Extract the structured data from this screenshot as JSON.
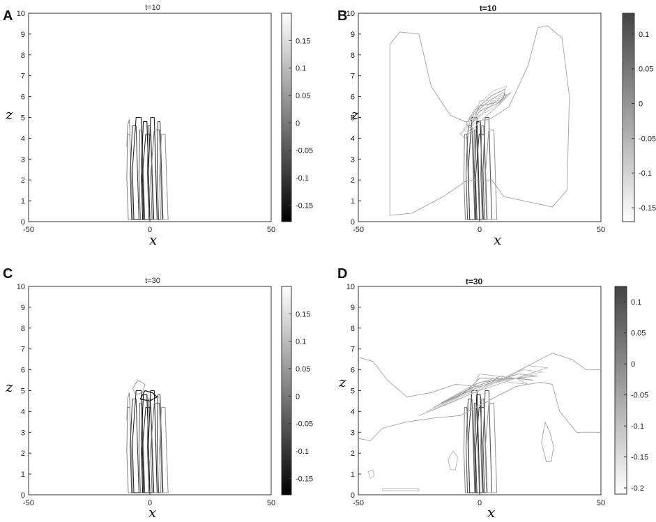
{
  "panels": [
    {
      "letter": "A",
      "title": "t=10",
      "xlabel": "x",
      "ylabel": "z",
      "xticks": [
        "-50",
        "0",
        "50"
      ],
      "yticks": [
        "0",
        "1",
        "2",
        "3",
        "4",
        "5",
        "6",
        "7",
        "8",
        "9",
        "10"
      ],
      "cbar_ticks": [
        "0.15",
        "0.1",
        "0.05",
        "0",
        "-0.05",
        "-0.1",
        "-0.15"
      ]
    },
    {
      "letter": "B",
      "title": "t=10",
      "xlabel": "x",
      "ylabel": "z",
      "xticks": [
        "-50",
        "0",
        "50"
      ],
      "yticks": [
        "0",
        "1",
        "2",
        "3",
        "4",
        "5",
        "6",
        "7",
        "8",
        "9",
        "10"
      ],
      "cbar_ticks": [
        "0.1",
        "0.05",
        "0",
        "-0.05",
        "-0.1",
        "-0.15"
      ]
    },
    {
      "letter": "C",
      "title": "t=30",
      "xlabel": "x",
      "ylabel": "z",
      "xticks": [
        "-50",
        "0",
        "50"
      ],
      "yticks": [
        "0",
        "1",
        "2",
        "3",
        "4",
        "5",
        "6",
        "7",
        "8",
        "9",
        "10"
      ],
      "cbar_ticks": [
        "0.15",
        "0.1",
        "0.05",
        "0",
        "-0.05",
        "-0.1",
        "-0.15"
      ]
    },
    {
      "letter": "D",
      "title": "t=30",
      "xlabel": "x",
      "ylabel": "z",
      "xticks": [
        "-50",
        "0",
        "50"
      ],
      "yticks": [
        "0",
        "1",
        "2",
        "3",
        "4",
        "5",
        "6",
        "7",
        "8",
        "9",
        "10"
      ],
      "cbar_ticks": [
        "0.1",
        "0.05",
        "0",
        "-0.05",
        "-0.1",
        "-0.15",
        "-0.2"
      ]
    }
  ],
  "chart_data": [
    {
      "type": "contour",
      "title": "t=10",
      "xlabel": "x",
      "ylabel": "z",
      "xlim": [
        -50,
        50
      ],
      "ylim": [
        0,
        10
      ],
      "colorbar": {
        "ticks": [
          0.15,
          0.1,
          0.05,
          0,
          -0.05,
          -0.1,
          -0.15
        ],
        "range": [
          -0.18,
          0.2
        ],
        "colormap": "gray (black = low, white = high)"
      },
      "features": [
        {
          "kind": "vertical-contour-band",
          "x_center": 0,
          "x_extent": [
            -10,
            8
          ],
          "z_extent": [
            0,
            5.2
          ],
          "tilt": "slight lean, top shifted left"
        }
      ]
    },
    {
      "type": "contour",
      "title": "t=10",
      "xlabel": "x",
      "ylabel": "z",
      "xlim": [
        -50,
        50
      ],
      "ylim": [
        0,
        10
      ],
      "colorbar": {
        "ticks": [
          0.1,
          0.05,
          0,
          -0.05,
          -0.1,
          -0.15
        ],
        "range": [
          -0.17,
          0.13
        ],
        "colormap": "gray (white = low, dark = high)"
      },
      "features": [
        {
          "kind": "vertical-contour-band",
          "x_center": 0,
          "x_extent": [
            -5,
            6
          ],
          "z_extent": [
            0,
            5
          ]
        },
        {
          "kind": "tilted-layer",
          "x_extent": [
            -8,
            15
          ],
          "z_extent": [
            3.5,
            6.5
          ],
          "tilt": "rising to the right"
        },
        {
          "kind": "outer-contour",
          "shape": "H-shaped",
          "x_extent": [
            -37,
            37
          ],
          "z_extent": [
            0.3,
            9.5
          ]
        }
      ]
    },
    {
      "type": "contour",
      "title": "t=30",
      "xlabel": "x",
      "ylabel": "z",
      "xlim": [
        -50,
        50
      ],
      "ylim": [
        0,
        10
      ],
      "colorbar": {
        "ticks": [
          0.15,
          0.1,
          0.05,
          0,
          -0.05,
          -0.1,
          -0.15
        ],
        "range": [
          -0.18,
          0.2
        ],
        "colormap": "gray (black = low, white = high)"
      },
      "features": [
        {
          "kind": "vertical-contour-band",
          "x_center": 0,
          "x_extent": [
            -10,
            8
          ],
          "z_extent": [
            0,
            5.4
          ]
        }
      ]
    },
    {
      "type": "contour",
      "title": "t=30",
      "xlabel": "x",
      "ylabel": "z",
      "xlim": [
        -50,
        50
      ],
      "ylim": [
        0,
        10
      ],
      "colorbar": {
        "ticks": [
          0.1,
          0.05,
          0,
          -0.05,
          -0.1,
          -0.15,
          -0.2
        ],
        "range": [
          -0.21,
          0.125
        ],
        "colormap": "gray (white = low, dark = high)"
      },
      "features": [
        {
          "kind": "vertical-contour-band",
          "x_center": 0,
          "x_extent": [
            -5,
            6
          ],
          "z_extent": [
            0,
            5
          ]
        },
        {
          "kind": "tilted-layer",
          "x_extent": [
            -25,
            30
          ],
          "z_extent": [
            4,
            6.5
          ],
          "tilt": "rising to the right"
        },
        {
          "kind": "outer-contour",
          "shape": "wavy band",
          "x_extent": [
            -50,
            50
          ],
          "z_extent": [
            2.5,
            7
          ]
        },
        {
          "kind": "closed-contour",
          "x_center": 28,
          "z_center": 2.5,
          "x_extent": [
            25,
            31
          ],
          "z_extent": [
            1.5,
            3.5
          ]
        }
      ]
    }
  ]
}
